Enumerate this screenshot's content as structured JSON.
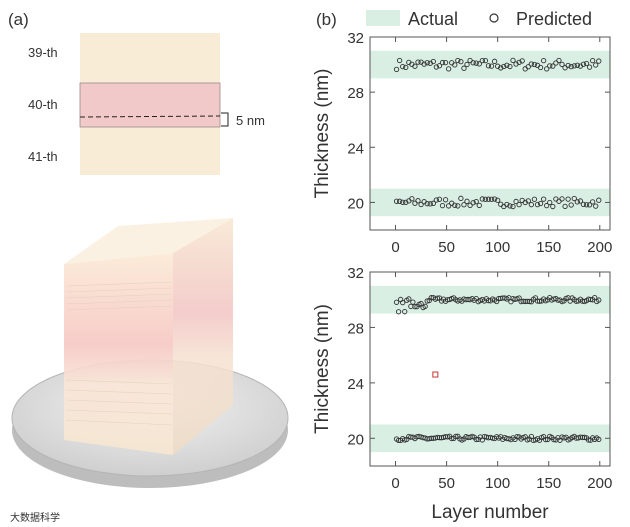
{
  "panel_a": {
    "label": "(a)",
    "layer_labels": [
      "39-th",
      "40-th",
      "41-th"
    ],
    "dimension_label": "5 nm",
    "colors": {
      "layer": "#f9ecd6",
      "highlight": "#f2c9c9",
      "substrate": "#e0e0e0"
    }
  },
  "panel_b": {
    "label": "(b)"
  },
  "watermark": "大数据科学",
  "chart_data": [
    {
      "type": "scatter",
      "title": "",
      "xlabel": "",
      "ylabel": "Thickness (nm)",
      "xlim": [
        -25,
        210
      ],
      "ylim": [
        18,
        32
      ],
      "xticks": [
        0,
        50,
        100,
        150,
        200
      ],
      "yticks": [
        20,
        24,
        28,
        32
      ],
      "legend": {
        "placement": "top",
        "entries": [
          "Actual",
          "Predicted"
        ]
      },
      "colors": {
        "band": "#d9efe4",
        "marker": "#333333"
      },
      "series": [
        {
          "name": "Actual",
          "kind": "band",
          "ranges": [
            [
              29.0,
              31.0
            ],
            [
              19.0,
              21.0
            ]
          ]
        },
        {
          "name": "Predicted",
          "kind": "markers",
          "x_start": 1,
          "x_step": 3,
          "count": 67,
          "clusters": [
            {
              "center": 30.0,
              "jitter": 0.35
            },
            {
              "center": 20.0,
              "jitter": 0.3
            }
          ]
        }
      ]
    },
    {
      "type": "scatter",
      "title": "",
      "xlabel": "Layer number",
      "ylabel": "Thickness (nm)",
      "xlim": [
        -25,
        210
      ],
      "ylim": [
        18,
        32
      ],
      "xticks": [
        0,
        50,
        100,
        150,
        200
      ],
      "yticks": [
        20,
        24,
        28,
        32
      ],
      "colors": {
        "band": "#d9efe4",
        "marker": "#333333",
        "outlier": "#cc3333"
      },
      "series": [
        {
          "name": "Actual",
          "kind": "band",
          "ranges": [
            [
              29.0,
              31.0
            ],
            [
              19.0,
              21.0
            ]
          ]
        },
        {
          "name": "Predicted",
          "kind": "markers",
          "x_start": 1,
          "x_step": 2,
          "count": 100,
          "clusters": [
            {
              "center": 30.0,
              "jitter": 0.15
            },
            {
              "center": 20.0,
              "jitter": 0.15
            }
          ],
          "outlier": {
            "x": 39,
            "y": 24.6
          }
        }
      ]
    }
  ]
}
